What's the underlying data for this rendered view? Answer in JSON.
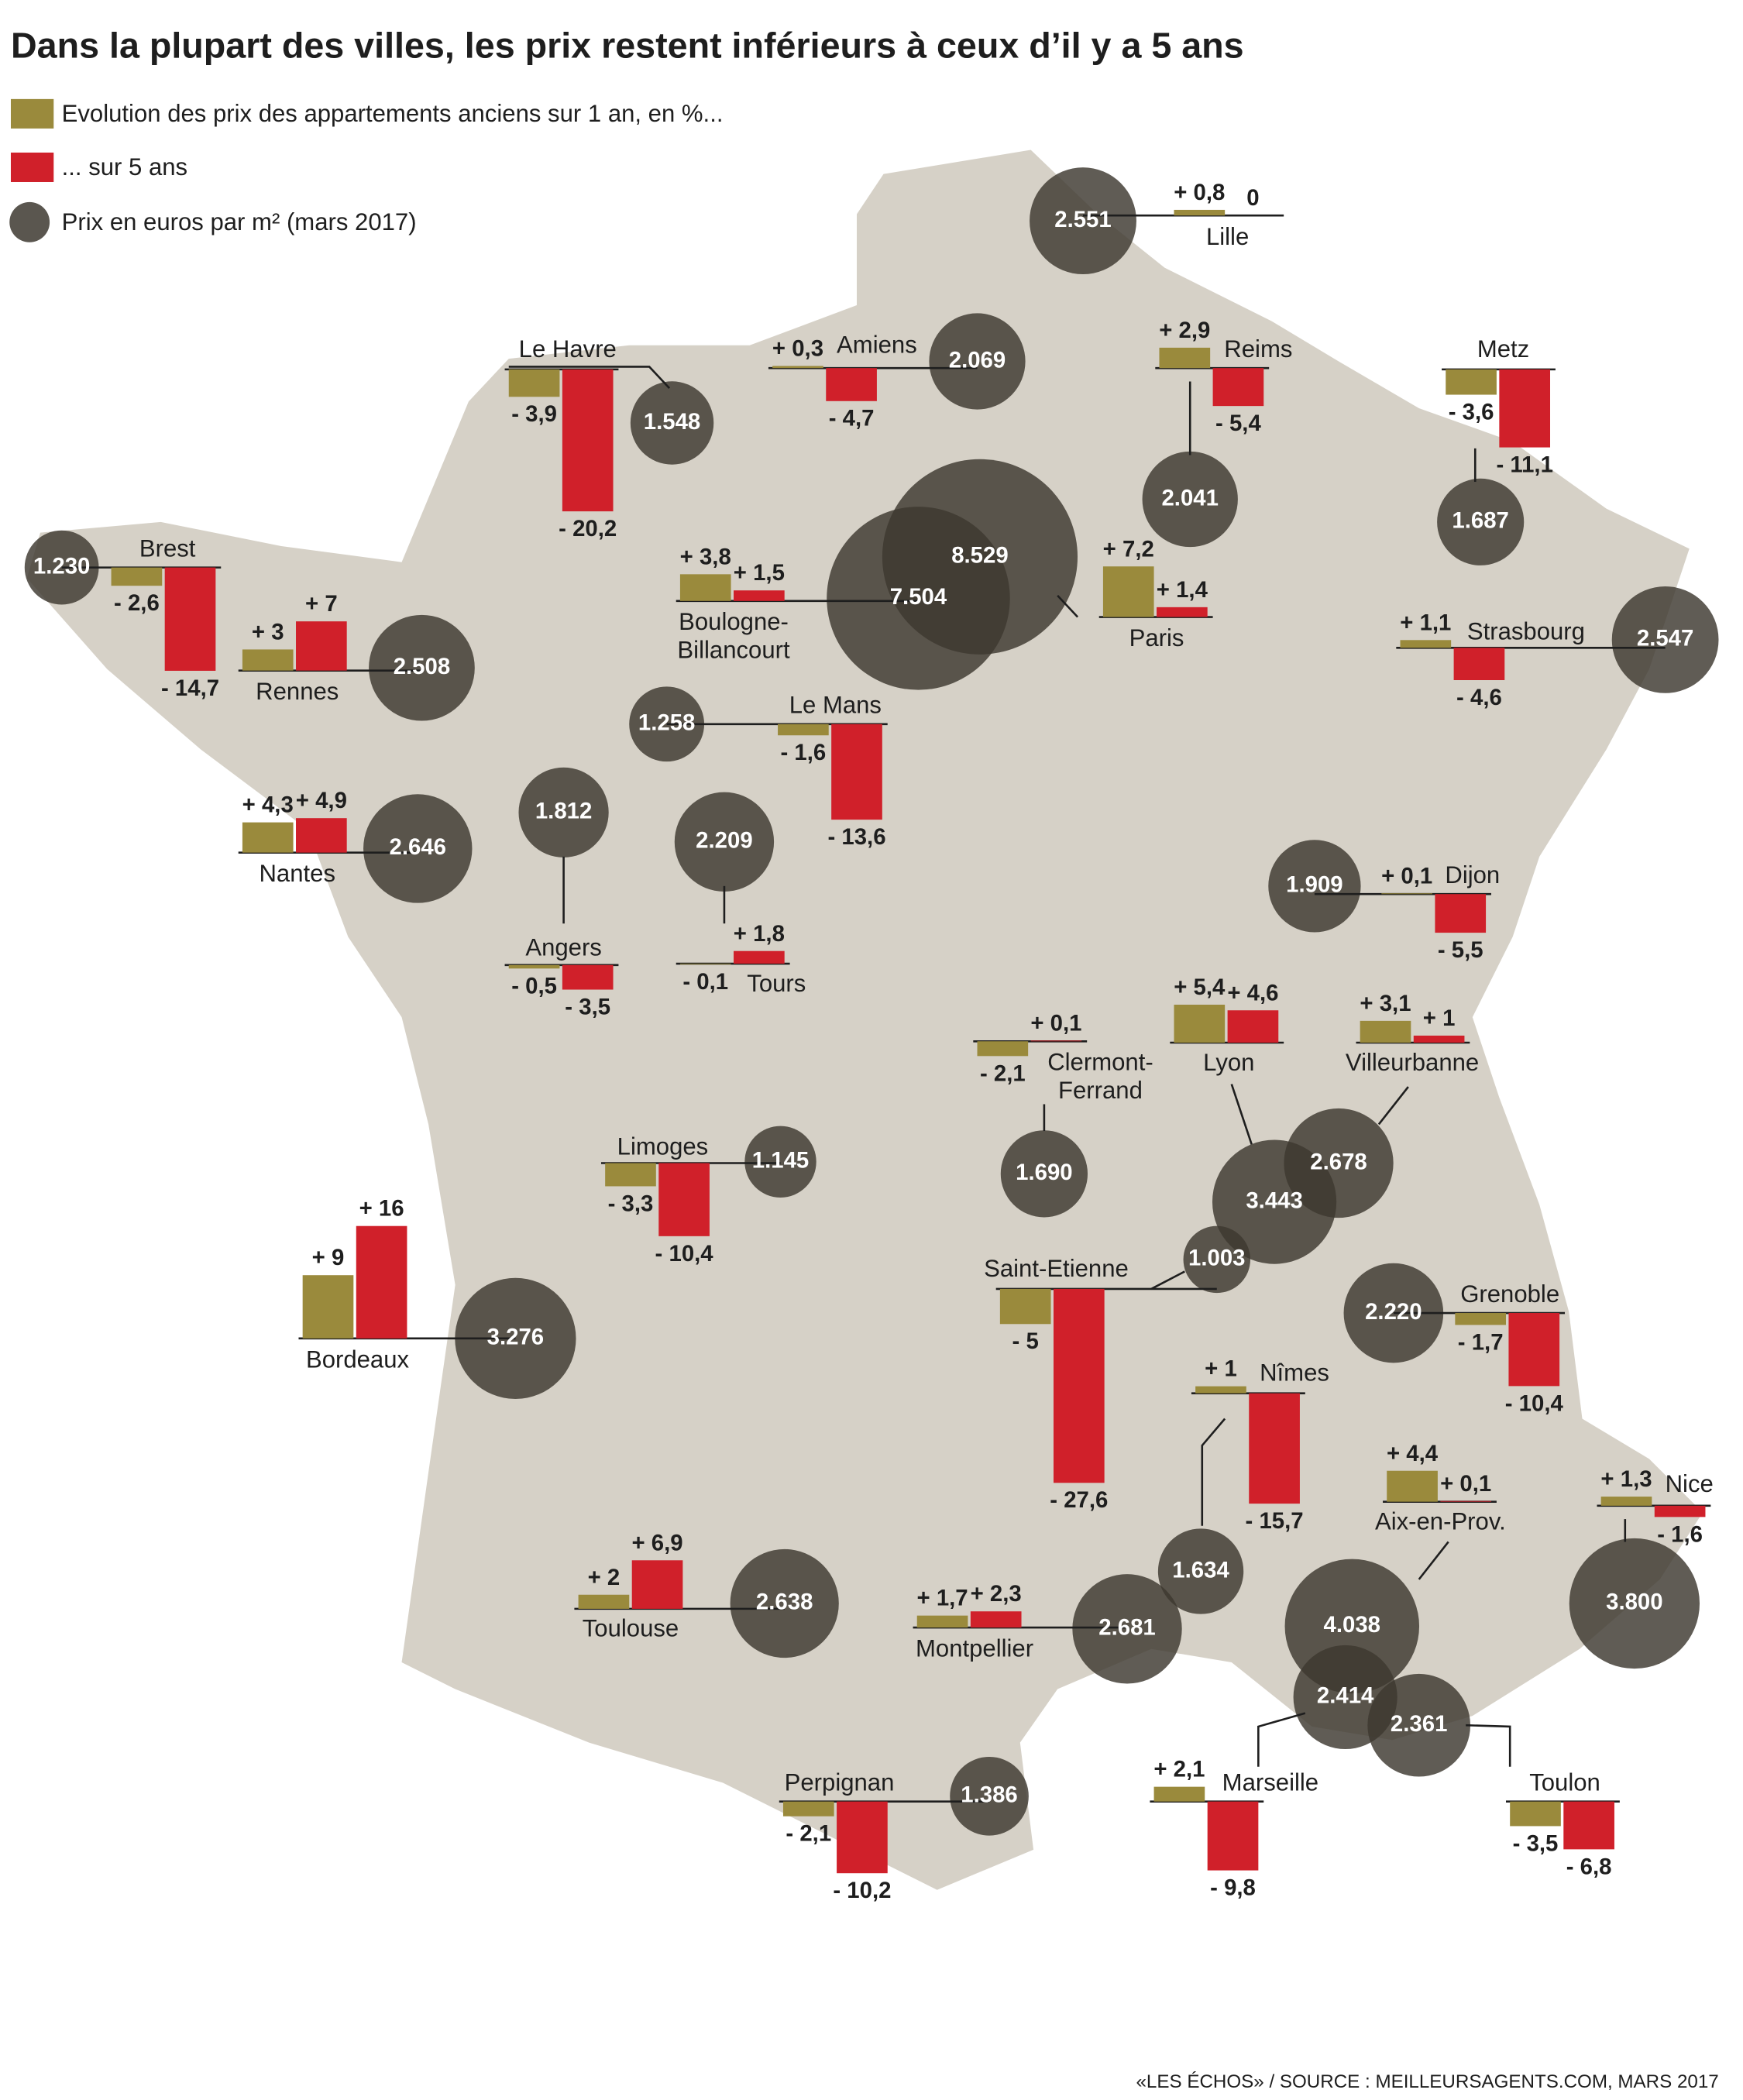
{
  "title": "Dans la plupart des villes, les prix restent inférieurs à ceux d’il y a 5 ans",
  "legend": {
    "one_year": "Evolution des prix des appartements anciens sur 1 an, en %...",
    "five_year": "... sur 5 ans",
    "price": "Prix en euros par m² (mars 2017)"
  },
  "source": "«LES ÉCHOS» / SOURCE : MEILLEURSAGENTS.COM, MARS 2017",
  "cities": [
    {
      "name": "Lille",
      "one_year": {
        "value": 0.8,
        "label": "+ 0,8"
      },
      "five_year": 0,
      "price": {
        "value": 2551,
        "label": "2.551"
      }
    },
    {
      "name": "Le Havre",
      "one_year": {
        "value": -3.9,
        "label": "- 3,9"
      },
      "five_year": {
        "value": -20.2,
        "label": "- 20,2"
      },
      "price": {
        "value": 1548,
        "label": "1.548"
      }
    },
    {
      "name": "Amiens",
      "one_year": {
        "value": 0.3,
        "label": "+ 0,3"
      },
      "five_year": {
        "value": -4.7,
        "label": "- 4,7"
      },
      "price": {
        "value": 2069,
        "label": "2.069"
      }
    },
    {
      "name": "Reims",
      "one_year": {
        "value": 2.9,
        "label": "+ 2,9"
      },
      "five_year": {
        "value": -5.4,
        "label": "- 5,4"
      },
      "price": {
        "value": 2041,
        "label": "2.041"
      }
    },
    {
      "name": "Metz",
      "one_year": {
        "value": -3.6,
        "label": "- 3,6"
      },
      "five_year": {
        "value": -11.1,
        "label": "- 11,1"
      },
      "price": {
        "value": 1687,
        "label": "1.687"
      }
    },
    {
      "name": "Brest",
      "one_year": {
        "value": -2.6,
        "label": "- 2,6"
      },
      "five_year": {
        "value": -14.7,
        "label": "- 14,7"
      },
      "price": {
        "value": 1230,
        "label": "1.230"
      }
    },
    {
      "name": "Boulogne-\nBillancourt",
      "one_year": {
        "value": 3.8,
        "label": "+ 3,8"
      },
      "five_year": {
        "value": 1.5,
        "label": "+ 1,5"
      },
      "price": {
        "value": 7504,
        "label": "7.504"
      }
    },
    {
      "name": "Paris",
      "one_year": {
        "value": 7.2,
        "label": "+ 7,2"
      },
      "five_year": {
        "value": 1.4,
        "label": "+ 1,4"
      },
      "price": {
        "value": 8529,
        "label": "8.529"
      }
    },
    {
      "name": "Rennes",
      "one_year": {
        "value": 3,
        "label": "+ 3"
      },
      "five_year": {
        "value": 7,
        "label": "+ 7"
      },
      "price": {
        "value": 2508,
        "label": "2.508"
      }
    },
    {
      "name": "Strasbourg",
      "one_year": {
        "value": 1.1,
        "label": "+ 1,1"
      },
      "five_year": {
        "value": -4.6,
        "label": "- 4,6"
      },
      "price": {
        "value": 2547,
        "label": "2.547"
      }
    },
    {
      "name": "Le Mans",
      "one_year": {
        "value": -1.6,
        "label": "- 1,6"
      },
      "five_year": {
        "value": -13.6,
        "label": "- 13,6"
      },
      "price": {
        "value": 1258,
        "label": "1.258"
      }
    },
    {
      "name": "Nantes",
      "one_year": {
        "value": 4.3,
        "label": "+ 4,3"
      },
      "five_year": {
        "value": 4.9,
        "label": "+ 4,9"
      },
      "price": {
        "value": 2646,
        "label": "2.646"
      }
    },
    {
      "name": "Angers",
      "one_year": {
        "value": -0.5,
        "label": "- 0,5"
      },
      "five_year": {
        "value": -3.5,
        "label": "- 3,5"
      },
      "price": {
        "value": 1812,
        "label": "1.812"
      }
    },
    {
      "name": "Tours",
      "one_year": {
        "value": -0.1,
        "label": "- 0,1"
      },
      "five_year": {
        "value": 1.8,
        "label": "+ 1,8"
      },
      "price": {
        "value": 2209,
        "label": "2.209"
      }
    },
    {
      "name": "Dijon",
      "one_year": {
        "value": 0.1,
        "label": "+ 0,1"
      },
      "five_year": {
        "value": -5.5,
        "label": "- 5,5"
      },
      "price": {
        "value": 1909,
        "label": "1.909"
      }
    },
    {
      "name": "Clermont-\nFerrand",
      "one_year": {
        "value": -2.1,
        "label": "- 2,1"
      },
      "five_year": {
        "value": 0.1,
        "label": "+ 0,1"
      },
      "price": {
        "value": 1690,
        "label": "1.690"
      }
    },
    {
      "name": "Lyon",
      "one_year": {
        "value": 5.4,
        "label": "+ 5,4"
      },
      "five_year": {
        "value": 4.6,
        "label": "+ 4,6"
      },
      "price": {
        "value": 3443,
        "label": "3.443"
      }
    },
    {
      "name": "Villeurbanne",
      "one_year": {
        "value": 3.1,
        "label": "+ 3,1"
      },
      "five_year": {
        "value": 1,
        "label": "+ 1"
      },
      "price": {
        "value": 2678,
        "label": "2.678"
      }
    },
    {
      "name": "Limoges",
      "one_year": {
        "value": -3.3,
        "label": "- 3,3"
      },
      "five_year": {
        "value": -10.4,
        "label": "- 10,4"
      },
      "price": {
        "value": 1145,
        "label": "1.145"
      }
    },
    {
      "name": "Bordeaux",
      "one_year": {
        "value": 9,
        "label": "+ 9"
      },
      "five_year": {
        "value": 16,
        "label": "+ 16"
      },
      "price": {
        "value": 3276,
        "label": "3.276"
      }
    },
    {
      "name": "Saint-Etienne",
      "one_year": {
        "value": -5,
        "label": "- 5"
      },
      "five_year": {
        "value": -27.6,
        "label": "- 27,6"
      },
      "price": {
        "value": 1003,
        "label": "1.003"
      }
    },
    {
      "name": "Grenoble",
      "one_year": {
        "value": -1.7,
        "label": "- 1,7"
      },
      "five_year": {
        "value": -10.4,
        "label": "- 10,4"
      },
      "price": {
        "value": 2220,
        "label": "2.220"
      }
    },
    {
      "name": "Nîmes",
      "one_year": {
        "value": 1,
        "label": "+ 1"
      },
      "five_year": {
        "value": -15.7,
        "label": "- 15,7"
      },
      "price": {
        "value": 1634,
        "label": "1.634"
      }
    },
    {
      "name": "Aix-en-Prov.",
      "one_year": {
        "value": 4.4,
        "label": "+ 4,4"
      },
      "five_year": {
        "value": 0.1,
        "label": "+ 0,1"
      },
      "price": {
        "value": 4038,
        "label": "4.038"
      }
    },
    {
      "name": "Nice",
      "one_year": {
        "value": 1.3,
        "label": "+ 1,3"
      },
      "five_year": {
        "value": -1.6,
        "label": "- 1,6"
      },
      "price": {
        "value": 3800,
        "label": "3.800"
      }
    },
    {
      "name": "Toulouse",
      "one_year": {
        "value": 2,
        "label": "+ 2"
      },
      "five_year": {
        "value": 6.9,
        "label": "+ 6,9"
      },
      "price": {
        "value": 2638,
        "label": "2.638"
      }
    },
    {
      "name": "Montpellier",
      "one_year": {
        "value": 1.7,
        "label": "+ 1,7"
      },
      "five_year": {
        "value": 2.3,
        "label": "+ 2,3"
      },
      "price": {
        "value": 2681,
        "label": "2.681"
      }
    },
    {
      "name": "Perpignan",
      "one_year": {
        "value": -2.1,
        "label": "- 2,1"
      },
      "five_year": {
        "value": -10.2,
        "label": "- 10,2"
      },
      "price": {
        "value": 1386,
        "label": "1.386"
      }
    },
    {
      "name": "Marseille",
      "one_year": {
        "value": 2.1,
        "label": "+ 2,1"
      },
      "five_year": {
        "value": -9.8,
        "label": "- 9,8"
      },
      "price": {
        "value": 2414,
        "label": "2.414"
      }
    },
    {
      "name": "Toulon",
      "one_year": {
        "value": -3.5,
        "label": "- 3,5"
      },
      "five_year": {
        "value": -6.8,
        "label": "- 6,8"
      },
      "price": {
        "value": 2361,
        "label": "2.361"
      }
    }
  ]
}
